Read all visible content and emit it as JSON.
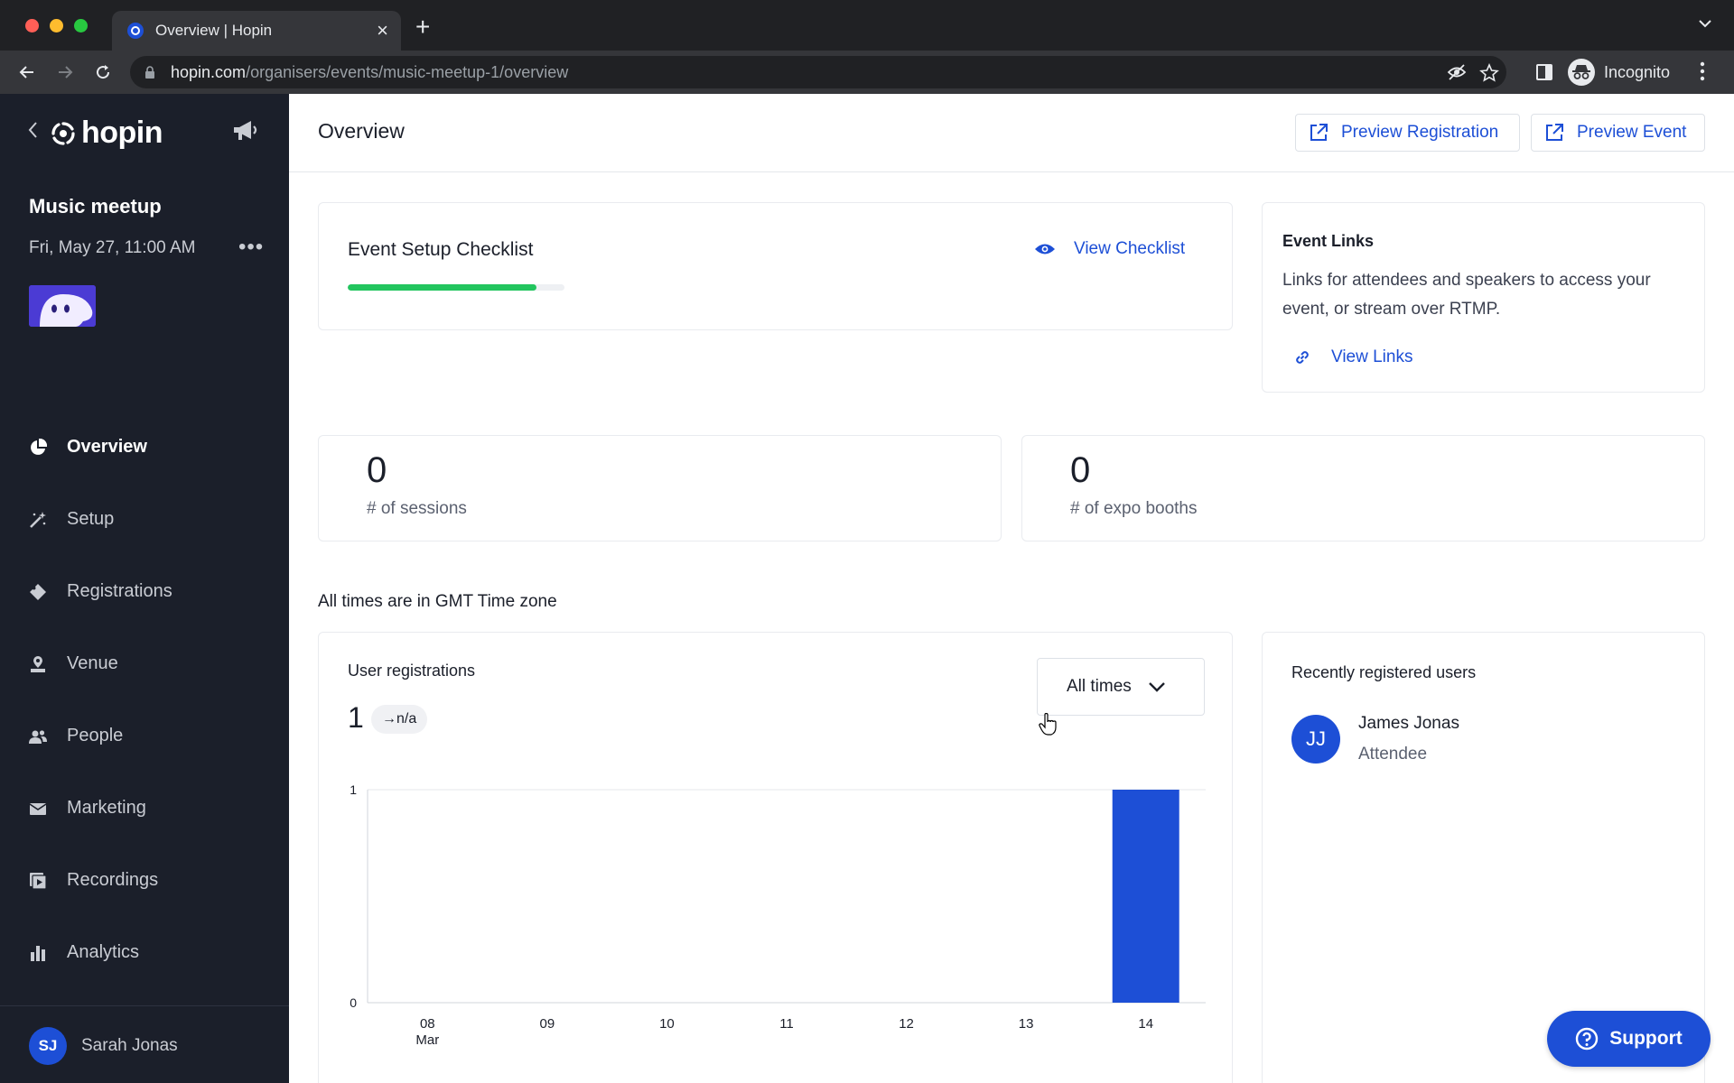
{
  "browser": {
    "tab_title": "Overview | Hopin",
    "url_host": "hopin.com",
    "url_path": "/organisers/events/music-meetup-1/overview",
    "incognito_label": "Incognito"
  },
  "sidebar": {
    "logo_text": "hopin",
    "event_name": "Music meetup",
    "event_date": "Fri, May 27, 11:00 AM",
    "nav": [
      {
        "label": "Overview",
        "icon": "pie-chart-icon",
        "active": true
      },
      {
        "label": "Setup",
        "icon": "magic-wand-icon",
        "active": false
      },
      {
        "label": "Registrations",
        "icon": "ticket-icon",
        "active": false
      },
      {
        "label": "Venue",
        "icon": "venue-pin-icon",
        "active": false
      },
      {
        "label": "People",
        "icon": "people-icon",
        "active": false
      },
      {
        "label": "Marketing",
        "icon": "envelope-icon",
        "active": false
      },
      {
        "label": "Recordings",
        "icon": "recording-icon",
        "active": false
      },
      {
        "label": "Analytics",
        "icon": "bar-chart-icon",
        "active": false
      }
    ],
    "user": {
      "initials": "SJ",
      "name": "Sarah Jonas"
    }
  },
  "header": {
    "title": "Overview",
    "preview_registration": "Preview Registration",
    "preview_event": "Preview Event"
  },
  "checklist": {
    "title": "Event Setup Checklist",
    "progress": 0.87,
    "view_label": "View Checklist"
  },
  "event_links": {
    "title": "Event Links",
    "description": "Links for attendees and speakers to access your event, or stream over RTMP.",
    "view_label": "View Links"
  },
  "stats": {
    "sessions": {
      "value": "0",
      "label": "# of sessions"
    },
    "expo_booths": {
      "value": "0",
      "label": "# of expo booths"
    }
  },
  "timezone_note": "All times are in GMT Time zone",
  "registrations": {
    "title": "User registrations",
    "count": "1",
    "change": "→n/a",
    "range": "All times"
  },
  "chart_data": {
    "type": "bar",
    "categories": [
      "08",
      "09",
      "10",
      "11",
      "12",
      "13",
      "14"
    ],
    "first_label_sub": "Mar",
    "values": [
      0,
      0,
      0,
      0,
      0,
      0,
      1
    ],
    "ylim": [
      0,
      1
    ],
    "yticks": [
      "0",
      "1"
    ],
    "color": "#1d4fd6"
  },
  "recent_users": {
    "title": "Recently registered users",
    "items": [
      {
        "initials": "JJ",
        "name": "James Jonas",
        "role": "Attendee"
      }
    ]
  },
  "support_label": "Support",
  "colors": {
    "accent": "#1d4fd6",
    "sidebar": "#1b1f2a",
    "progress": "#22c55e"
  }
}
